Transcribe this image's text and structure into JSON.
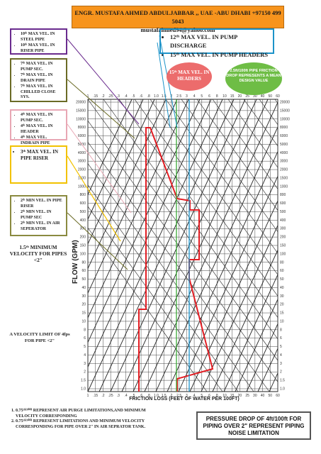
{
  "header": {
    "line1": "ENGR. MUSTAFA AHMED ABDULJABBAR ,, UAE -ABU DHABI +97150 499 5043",
    "line2": "mustafahmed94@yahoo.com"
  },
  "boxes": {
    "purple": [
      "10ᵗʰ MAX VEL. IN STEEL PIPE",
      "10ᵗʰ MAX VEL. IN RISER PIPE"
    ],
    "olive": [
      "7ᵗʰ MAX VEL. IN PUMP SEC.",
      "7ᵗʰ MAX VEL. IN DRAIN PIPE",
      "7ᵗʰ MAX VEL. IN CHILLED CLOSE SYS."
    ],
    "pink": [
      "4ᵗʰ MAX VEL. IN PUMP SEC.",
      "4ᵗʰ MAX VEL. IN HEADER",
      "4ᵗʰ MAX VEL. INDRAIN PIPE"
    ],
    "yellow": [
      "3ᵗʰ MAX VEL. IN PIPE RISER"
    ],
    "green": [
      "2ᵗʰ MIN VEL. IN PIPE RISER",
      "2ᵗʰ MIN VEL. IN PUMP SEC",
      "2ᵗʰ MIN VEL. IN AIR SEPERATOR"
    ],
    "blue": [
      "12ᵗʰ MAX VEL. IN PUMP DISCHARGE",
      "15ᵗʰ MAX VEL. IN PUMP HEADERS"
    ]
  },
  "callouts": {
    "min_velocity": "1.5ᵗʰ MINIMUM VELOCITY FOR PIPES <2\"",
    "velocity_limit": "A VELOCITY LIMIT OF 4fps FOR PIPE <2\"",
    "red_oval": "15ᵗʰ MAX VEL. IN HEADERS",
    "green_oval": "2.5ft/100ft PIPE FRICTION DROP REPRESENTS A MEAN DESIGN VALUE"
  },
  "notes": [
    "0.75ᵗʰ⁽¹⁰⁰⁾ REPRESENT AIR PURGE LIMITATIONS,AND MINIMUM VELOCITY CORRESPONDING",
    "0.75ᵗʰ⁽¹⁰⁰⁾ REPRESENT LIMITATIONS AND MINIMUM VELOCITY CORRESPONDING FOR PIPE OVER 2\" IN AIR SEPRATOR TANK."
  ],
  "pressure_note": "PRESSURE DROP OF 4ft/100ft FOR PIPING OVER 2\" REPRESENT PIPING NOISE LIMITATION",
  "chart": {
    "xlabel": "FRICTION LOSS (FEET OF WATER PER 100FT)",
    "ylabel": "FLOW (GPM)",
    "x_ticks": [
      "1",
      ".15",
      ".2",
      ".25",
      ".3",
      ".4",
      ".5",
      ".6",
      ".8",
      "1.0",
      "1.5",
      "2",
      "2.5",
      "3",
      "4",
      "5",
      "6",
      "8",
      "10",
      "15",
      "20",
      "25",
      "30",
      "40",
      "50",
      "60"
    ],
    "y_ticks": [
      "20000",
      "15000",
      "10000",
      "8000",
      "6000",
      "5000",
      "4000",
      "3000",
      "2000",
      "1500",
      "1000",
      "800",
      "600",
      "500",
      "400",
      "300",
      "200",
      "150",
      "100",
      "80",
      "60",
      "50",
      "40",
      "30",
      "20",
      "15",
      "10",
      "8",
      "6",
      "5",
      "4",
      "3",
      "2",
      "1.5",
      "1.0"
    ],
    "colors": {
      "red": "#e31e24",
      "green": "#3aa935",
      "blue": "#1c93c9",
      "yellow": "#f2c200",
      "pink": "#e8a7b4",
      "olive": "#6b6b26",
      "purple": "#6a2b8e"
    }
  }
}
